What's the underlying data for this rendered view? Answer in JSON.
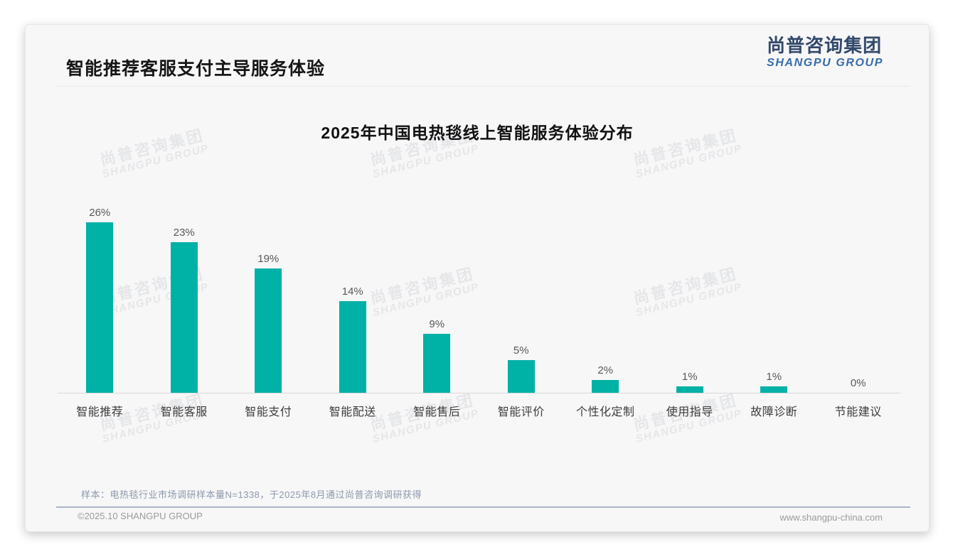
{
  "header": {
    "title": "智能推荐客服支付主导服务体验"
  },
  "logo": {
    "cn": "尚普咨询集团",
    "en": "SHANGPU GROUP"
  },
  "watermark": {
    "cn": "尚普咨询集团",
    "en": "SHANGPU GROUP"
  },
  "note": "样本：电热毯行业市场调研样本量N=1338，于2025年8月通过尚普咨询调研获得",
  "footer": {
    "copyright": "©2025.10 SHANGPU GROUP",
    "website": "www.shangpu-china.com"
  },
  "chart_data": {
    "type": "bar",
    "title": "2025年中国电热毯线上智能服务体验分布",
    "categories": [
      "智能推荐",
      "智能客服",
      "智能支付",
      "智能配送",
      "智能售后",
      "智能评价",
      "个性化定制",
      "使用指导",
      "故障诊断",
      "节能建议"
    ],
    "values": [
      26,
      23,
      19,
      14,
      9,
      5,
      2,
      1,
      1,
      0
    ],
    "data_labels": [
      "26%",
      "23%",
      "19%",
      "14%",
      "9%",
      "5%",
      "2%",
      "1%",
      "1%",
      "0%"
    ],
    "unit": "%",
    "bar_color": "#00b1a6",
    "ylim": [
      0,
      26
    ],
    "grid": false,
    "legend": false,
    "value_axis_hidden": true
  }
}
